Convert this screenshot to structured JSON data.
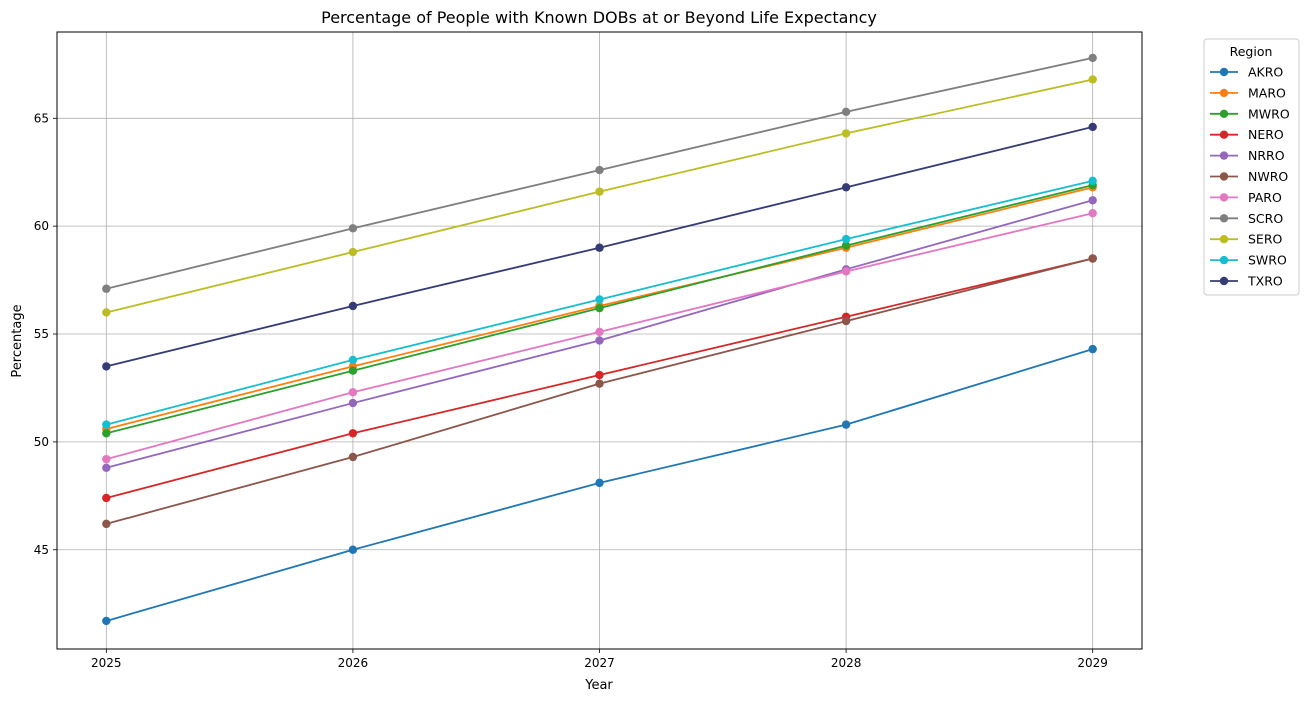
{
  "chart_data": {
    "type": "line",
    "title": "Percentage of People with Known DOBs at or Beyond Life Expectancy",
    "xlabel": "Year",
    "ylabel": "Percentage",
    "x": [
      2025,
      2026,
      2027,
      2028,
      2029
    ],
    "x_tick_labels": [
      "2025",
      "2026",
      "2027",
      "2028",
      "2029"
    ],
    "y_ticks": [
      45,
      50,
      55,
      60,
      65
    ],
    "y_tick_labels": [
      "45",
      "50",
      "55",
      "60",
      "65"
    ],
    "xlim": [
      2024.8,
      2029.2
    ],
    "ylim": [
      40.4,
      69.0
    ],
    "grid": true,
    "legend": {
      "title": "Region",
      "placement": "outside-right"
    },
    "series": [
      {
        "name": "AKRO",
        "color": "#1f77b4",
        "values": [
          41.7,
          45.0,
          48.1,
          50.8,
          54.3
        ]
      },
      {
        "name": "MARO",
        "color": "#ff7f0e",
        "values": [
          50.6,
          53.5,
          56.3,
          59.0,
          61.8
        ]
      },
      {
        "name": "MWRO",
        "color": "#2ca02c",
        "values": [
          50.4,
          53.3,
          56.2,
          59.1,
          61.9
        ]
      },
      {
        "name": "NERO",
        "color": "#d62728",
        "values": [
          47.4,
          50.4,
          53.1,
          55.8,
          58.5
        ]
      },
      {
        "name": "NRRO",
        "color": "#9467bd",
        "values": [
          48.8,
          51.8,
          54.7,
          58.0,
          61.2
        ]
      },
      {
        "name": "NWRO",
        "color": "#8c564b",
        "values": [
          46.2,
          49.3,
          52.7,
          55.6,
          58.5
        ]
      },
      {
        "name": "PARO",
        "color": "#e377c2",
        "values": [
          49.2,
          52.3,
          55.1,
          57.9,
          60.6
        ]
      },
      {
        "name": "SCRO",
        "color": "#7f7f7f",
        "values": [
          57.1,
          59.9,
          62.6,
          65.3,
          67.8
        ]
      },
      {
        "name": "SERO",
        "color": "#bcbd22",
        "values": [
          56.0,
          58.8,
          61.6,
          64.3,
          66.8
        ]
      },
      {
        "name": "SWRO",
        "color": "#17becf",
        "values": [
          50.8,
          53.8,
          56.6,
          59.4,
          62.1
        ]
      },
      {
        "name": "TXRO",
        "color": "#353c75",
        "values": [
          53.5,
          56.3,
          59.0,
          61.8,
          64.6
        ]
      }
    ]
  }
}
